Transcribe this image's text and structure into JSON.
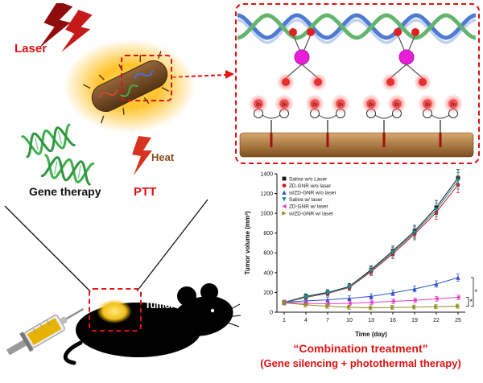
{
  "left_panel": {
    "laser_label": "Laser",
    "gene_therapy_label": "Gene therapy",
    "heat_label": "Heat",
    "ptt_label": "PTT",
    "tumor_label": "Tumor"
  },
  "schematic": {
    "zn_label": "Zn"
  },
  "caption": {
    "line1": "“Combination treatment”",
    "line2": "(Gene silencing + photothermal therapy)"
  },
  "chart_data": {
    "type": "line",
    "x": [
      1,
      4,
      7,
      10,
      13,
      16,
      19,
      22,
      25
    ],
    "xlabel": "Time (day)",
    "ylabel": "Tumor volume (mm³)",
    "ylim": [
      0,
      1400
    ],
    "yticks": [
      0,
      200,
      400,
      600,
      800,
      1000,
      1200,
      1400
    ],
    "legend_position": "top-left",
    "series": [
      {
        "name": "Saline w/o Laser",
        "color": "#141414",
        "marker": "square",
        "values": [
          100,
          160,
          200,
          260,
          430,
          620,
          820,
          1060,
          1360
        ]
      },
      {
        "name": "ZD-GNR w/o laser",
        "color": "#d01818",
        "marker": "circle",
        "values": [
          95,
          150,
          190,
          250,
          410,
          590,
          790,
          1010,
          1290
        ]
      },
      {
        "name": "si/ZD-GNR w/o laser",
        "color": "#2f52c8",
        "marker": "triangle-up",
        "values": [
          100,
          115,
          125,
          140,
          160,
          195,
          235,
          285,
          350
        ]
      },
      {
        "name": "Saline w/ laser",
        "color": "#12909a",
        "marker": "triangle-down",
        "values": [
          98,
          155,
          195,
          255,
          420,
          605,
          805,
          1035,
          1330
        ]
      },
      {
        "name": "ZD-GNR w/ laser",
        "color": "#e83cc8",
        "marker": "triangle-left",
        "values": [
          100,
          90,
          85,
          90,
          100,
          110,
          120,
          135,
          150
        ]
      },
      {
        "name": "si/ZD-GNR w/ laser",
        "color": "#8f8f1f",
        "marker": "triangle-right",
        "values": [
          95,
          75,
          60,
          50,
          45,
          48,
          52,
          56,
          60
        ]
      }
    ],
    "sig_brackets": [
      {
        "series_a": 2,
        "series_b": 5,
        "label": "*"
      },
      {
        "series_a": 4,
        "series_b": 5,
        "label": "*"
      }
    ]
  }
}
